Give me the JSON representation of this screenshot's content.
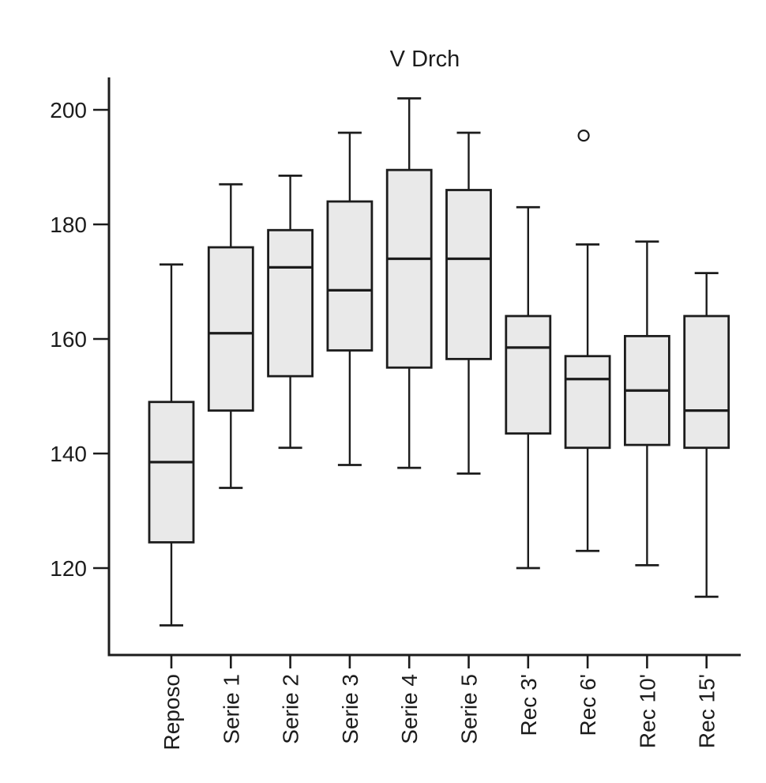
{
  "chart_data": {
    "type": "boxplot",
    "title": "V Drch",
    "xlabel": "",
    "ylabel": "",
    "grid": false,
    "legend": false,
    "yticks": [
      120,
      140,
      160,
      180,
      200
    ],
    "ylim": [
      104.8,
      205.7
    ],
    "categories": [
      "Reposo",
      "Serie 1",
      "Serie 2",
      "Serie 3",
      "Serie 4",
      "Serie 5",
      "Rec 3'",
      "Rec 6'",
      "Rec 10'",
      "Rec 15'"
    ],
    "boxes": [
      {
        "category": "Reposo",
        "whisker_low": 110,
        "q1": 124.5,
        "median": 138.5,
        "q3": 149,
        "whisker_high": 173,
        "outliers": []
      },
      {
        "category": "Serie 1",
        "whisker_low": 134,
        "q1": 147.5,
        "median": 161,
        "q3": 176,
        "whisker_high": 187,
        "outliers": []
      },
      {
        "category": "Serie 2",
        "whisker_low": 141,
        "q1": 153.5,
        "median": 172.5,
        "q3": 179,
        "whisker_high": 188.5,
        "outliers": []
      },
      {
        "category": "Serie 3",
        "whisker_low": 138,
        "q1": 158,
        "median": 168.5,
        "q3": 184,
        "whisker_high": 196,
        "outliers": []
      },
      {
        "category": "Serie 4",
        "whisker_low": 137.5,
        "q1": 155,
        "median": 174,
        "q3": 189.5,
        "whisker_high": 202,
        "outliers": []
      },
      {
        "category": "Serie 5",
        "whisker_low": 136.5,
        "q1": 156.5,
        "median": 174,
        "q3": 186,
        "whisker_high": 196,
        "outliers": []
      },
      {
        "category": "Rec 3'",
        "whisker_low": 120,
        "q1": 143.5,
        "median": 158.5,
        "q3": 164,
        "whisker_high": 183,
        "outliers": []
      },
      {
        "category": "Rec 6'",
        "whisker_low": 123,
        "q1": 141,
        "median": 153,
        "q3": 157,
        "whisker_high": 176.5,
        "outliers": [
          195.5
        ]
      },
      {
        "category": "Rec 10'",
        "whisker_low": 120.5,
        "q1": 141.5,
        "median": 151,
        "q3": 160.5,
        "whisker_high": 177,
        "outliers": []
      },
      {
        "category": "Rec 15'",
        "whisker_low": 115,
        "q1": 141,
        "median": 147.5,
        "q3": 164,
        "whisker_high": 171.5,
        "outliers": []
      }
    ],
    "colors": {
      "box_fill": "#e9e9e9",
      "line": "#1c1c1c",
      "background": "#ffffff"
    }
  }
}
